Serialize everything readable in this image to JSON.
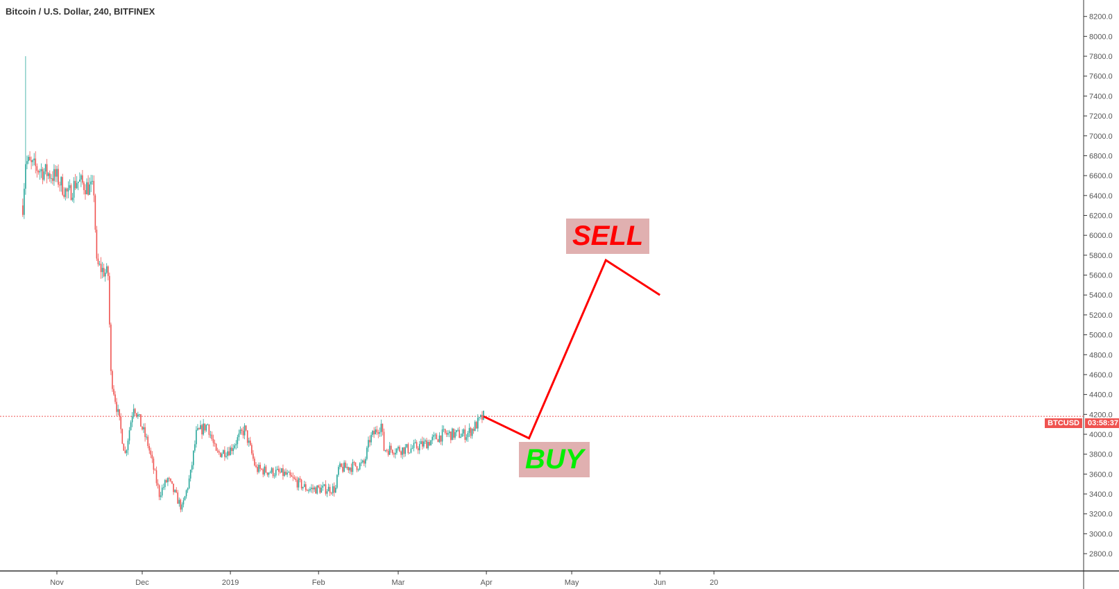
{
  "header": {
    "title": "Bitcoin / U.S. Dollar, 240, BITFINEX"
  },
  "price_tag": {
    "symbol": "BTCUSD",
    "countdown": "03:58:37",
    "price": 4180,
    "color": "#ef5350"
  },
  "annotations": {
    "sell_label": "SELL",
    "buy_label": "BUY",
    "sell_color": "#ff0000",
    "buy_color": "#00ee00",
    "box_color": "#e0b0b0",
    "line_color": "#ff0000",
    "path": [
      {
        "date": "2019-03-31",
        "price": 4180
      },
      {
        "date": "2019-04-16",
        "price": 3960
      },
      {
        "date": "2019-05-13",
        "price": 5750
      },
      {
        "date": "2019-06-01",
        "price": 5400
      }
    ]
  },
  "chart_data": {
    "type": "candlestick",
    "title": "Bitcoin / U.S. Dollar, 240, BITFINEX",
    "ylim": [
      2700,
      8300
    ],
    "yticks": [
      2800,
      3000,
      3200,
      3400,
      3600,
      3800,
      4000,
      4200,
      4400,
      4600,
      4800,
      5000,
      5200,
      5400,
      5600,
      5800,
      6000,
      6200,
      6400,
      6600,
      6800,
      7000,
      7200,
      7400,
      7600,
      7800,
      8000,
      8200
    ],
    "xticks": [
      {
        "label": "Nov",
        "date": "2018-11-01"
      },
      {
        "label": "Dec",
        "date": "2018-12-01"
      },
      {
        "label": "2019",
        "date": "2019-01-01"
      },
      {
        "label": "Feb",
        "date": "2019-02-01"
      },
      {
        "label": "Mar",
        "date": "2019-03-01"
      },
      {
        "label": "Apr",
        "date": "2019-04-01"
      },
      {
        "label": "May",
        "date": "2019-05-01"
      },
      {
        "label": "Jun",
        "date": "2019-06-01"
      },
      {
        "label": "20",
        "date": "2019-06-20"
      }
    ],
    "up_color": "#26a69a",
    "down_color": "#ef5350",
    "close_path": [
      [
        "2018-10-20",
        6300
      ],
      [
        "2018-10-21",
        6750
      ],
      [
        "2018-10-23",
        6700
      ],
      [
        "2018-11-01",
        6580
      ],
      [
        "2018-11-05",
        6400
      ],
      [
        "2018-11-08",
        6550
      ],
      [
        "2018-11-14",
        6450
      ],
      [
        "2018-11-15",
        5700
      ],
      [
        "2018-11-19",
        5600
      ],
      [
        "2018-11-20",
        4600
      ],
      [
        "2018-11-25",
        3800
      ],
      [
        "2018-11-28",
        4300
      ],
      [
        "2018-12-03",
        3900
      ],
      [
        "2018-12-07",
        3400
      ],
      [
        "2018-12-10",
        3550
      ],
      [
        "2018-12-15",
        3250
      ],
      [
        "2018-12-18",
        3600
      ],
      [
        "2018-12-20",
        4000
      ],
      [
        "2018-12-24",
        4100
      ],
      [
        "2018-12-27",
        3800
      ],
      [
        "2019-01-01",
        3850
      ],
      [
        "2019-01-06",
        4050
      ],
      [
        "2019-01-10",
        3650
      ],
      [
        "2019-01-20",
        3600
      ],
      [
        "2019-01-28",
        3450
      ],
      [
        "2019-02-07",
        3450
      ],
      [
        "2019-02-08",
        3650
      ],
      [
        "2019-02-17",
        3700
      ],
      [
        "2019-02-19",
        3950
      ],
      [
        "2019-02-23",
        4100
      ],
      [
        "2019-02-24",
        3850
      ],
      [
        "2019-03-05",
        3850
      ],
      [
        "2019-03-10",
        3900
      ],
      [
        "2019-03-17",
        4000
      ],
      [
        "2019-03-25",
        4000
      ],
      [
        "2019-03-27",
        4050
      ],
      [
        "2019-03-31",
        4180
      ]
    ],
    "spike_high": 7800
  }
}
